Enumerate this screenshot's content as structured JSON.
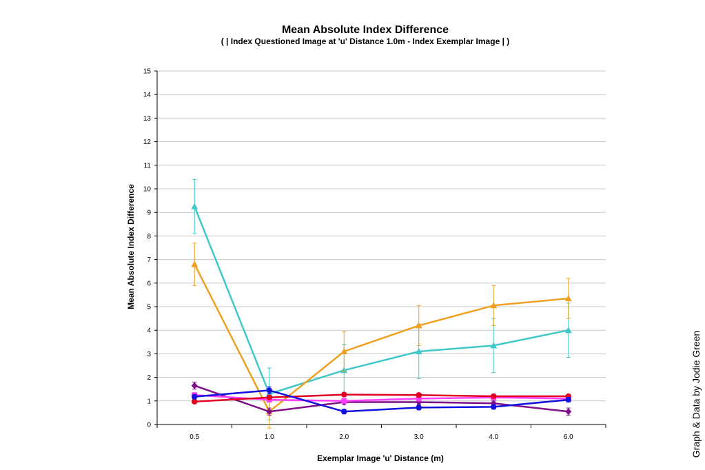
{
  "chart_data": {
    "type": "line",
    "title": "Mean Absolute Index Difference",
    "subtitle": "( | Index Questioned Image at 'u' Distance 1.0m - Index Exemplar Image | )",
    "xlabel": "Exemplar Image 'u' Distance (m)",
    "ylabel": "Mean Absolute Index Difference",
    "categories": [
      "0.5",
      "1.0",
      "2.0",
      "3.0",
      "4.0",
      "6.0"
    ],
    "ylim": [
      0,
      15
    ],
    "yticks": [
      0,
      1,
      2,
      3,
      4,
      5,
      6,
      7,
      8,
      9,
      10,
      11,
      12,
      13,
      14,
      15
    ],
    "grid": true,
    "legend": "none",
    "series": [
      {
        "color": "#40c8c8",
        "marker": "triangle",
        "values": [
          9.25,
          1.3,
          2.3,
          3.1,
          3.35,
          4.0
        ],
        "errors": [
          1.15,
          1.1,
          1.1,
          1.15,
          1.15,
          1.15
        ]
      },
      {
        "color": "#f0a020",
        "marker": "triangle",
        "values": [
          6.8,
          0.55,
          3.1,
          4.2,
          5.05,
          5.35
        ],
        "errors": [
          0.9,
          0.7,
          0.85,
          0.85,
          0.85,
          0.85
        ]
      },
      {
        "color": "#80108a",
        "marker": "diamond",
        "values": [
          1.65,
          0.55,
          0.95,
          0.95,
          0.9,
          0.55
        ],
        "errors": [
          0.15,
          0.15,
          0.1,
          0.1,
          0.1,
          0.15
        ]
      },
      {
        "color": "#ff40ff",
        "marker": "square",
        "values": [
          1.25,
          1.05,
          1.0,
          1.1,
          1.15,
          1.1
        ],
        "errors": [
          0.1,
          0.1,
          0.1,
          0.1,
          0.1,
          0.1
        ]
      },
      {
        "color": "#e00020",
        "marker": "circle",
        "values": [
          0.97,
          1.15,
          1.27,
          1.25,
          1.2,
          1.2
        ],
        "errors": [
          0.08,
          0.08,
          0.08,
          0.08,
          0.08,
          0.08
        ]
      },
      {
        "color": "#1010e0",
        "marker": "circle",
        "values": [
          1.18,
          1.45,
          0.55,
          0.72,
          0.75,
          1.05
        ],
        "errors": [
          0.1,
          0.15,
          0.1,
          0.1,
          0.1,
          0.1
        ]
      }
    ]
  },
  "credit": "Graph & Data by Jodie Green"
}
